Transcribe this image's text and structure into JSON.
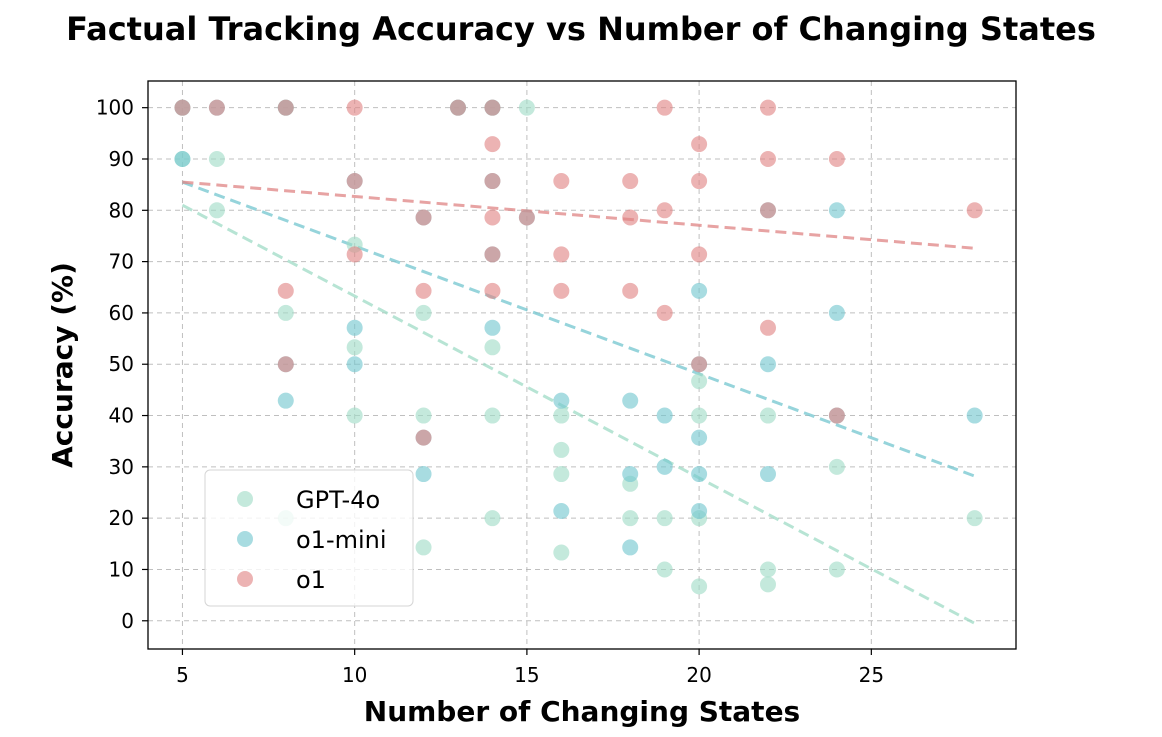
{
  "chart_data": {
    "type": "scatter",
    "title": "Factual Tracking Accuracy vs Number of Changing States",
    "xlabel": "Number of Changing States",
    "ylabel": "Accuracy (%)",
    "xlim": [
      4,
      29.2
    ],
    "ylim": [
      -5.5,
      105.2
    ],
    "xticks": [
      5,
      10,
      15,
      20,
      25
    ],
    "yticks": [
      0,
      10,
      20,
      30,
      40,
      50,
      60,
      70,
      80,
      90,
      100
    ],
    "grid": true,
    "legend_position": "lower-left",
    "series": [
      {
        "name": "GPT-4o",
        "color": "#9fdcc6",
        "trend": [
          [
            5,
            81
          ],
          [
            28,
            -0.5
          ]
        ],
        "points": [
          [
            5,
            100
          ],
          [
            5,
            90
          ],
          [
            6,
            90
          ],
          [
            6,
            80
          ],
          [
            8,
            100
          ],
          [
            8,
            60
          ],
          [
            8,
            20
          ],
          [
            10,
            73.3
          ],
          [
            10,
            53.3
          ],
          [
            10,
            40
          ],
          [
            12,
            60
          ],
          [
            12,
            40
          ],
          [
            12,
            14.3
          ],
          [
            13,
            100
          ],
          [
            14,
            100
          ],
          [
            14,
            53.3
          ],
          [
            14,
            40
          ],
          [
            14,
            20
          ],
          [
            15,
            100
          ],
          [
            16,
            40
          ],
          [
            16,
            33.3
          ],
          [
            16,
            28.6
          ],
          [
            16,
            13.3
          ],
          [
            18,
            26.7
          ],
          [
            18,
            20
          ],
          [
            19,
            20
          ],
          [
            19,
            10
          ],
          [
            20,
            46.7
          ],
          [
            20,
            40
          ],
          [
            20,
            20
          ],
          [
            20,
            6.7
          ],
          [
            22,
            40
          ],
          [
            22,
            10
          ],
          [
            22,
            7.1
          ],
          [
            24,
            30
          ],
          [
            24,
            10
          ],
          [
            28,
            20
          ]
        ]
      },
      {
        "name": "o1-mini",
        "color": "#73c6cf",
        "trend": [
          [
            5,
            85.5
          ],
          [
            28,
            28.2
          ]
        ],
        "points": [
          [
            5,
            100
          ],
          [
            5,
            90
          ],
          [
            6,
            100
          ],
          [
            8,
            100
          ],
          [
            8,
            50
          ],
          [
            8,
            42.9
          ],
          [
            10,
            85.7
          ],
          [
            10,
            57.1
          ],
          [
            10,
            50
          ],
          [
            12,
            78.6
          ],
          [
            12,
            28.6
          ],
          [
            12,
            35.7
          ],
          [
            13,
            100
          ],
          [
            14,
            100
          ],
          [
            14,
            85.7
          ],
          [
            14,
            71.4
          ],
          [
            14,
            57.1
          ],
          [
            15,
            78.6
          ],
          [
            16,
            42.9
          ],
          [
            16,
            21.4
          ],
          [
            18,
            42.9
          ],
          [
            18,
            28.6
          ],
          [
            18,
            14.3
          ],
          [
            19,
            40
          ],
          [
            19,
            30
          ],
          [
            20,
            64.3
          ],
          [
            20,
            50
          ],
          [
            20,
            35.7
          ],
          [
            20,
            28.6
          ],
          [
            20,
            21.4
          ],
          [
            22,
            80
          ],
          [
            22,
            50
          ],
          [
            22,
            28.6
          ],
          [
            24,
            80
          ],
          [
            24,
            60
          ],
          [
            24,
            40
          ],
          [
            28,
            40
          ]
        ]
      },
      {
        "name": "o1",
        "color": "#e08585",
        "trend": [
          [
            5,
            85.5
          ],
          [
            28,
            72.6
          ]
        ],
        "points": [
          [
            5,
            100
          ],
          [
            6,
            100
          ],
          [
            8,
            100
          ],
          [
            8,
            64.3
          ],
          [
            8,
            50
          ],
          [
            10,
            100
          ],
          [
            10,
            85.7
          ],
          [
            10,
            71.4
          ],
          [
            12,
            78.6
          ],
          [
            12,
            64.3
          ],
          [
            12,
            35.7
          ],
          [
            13,
            100
          ],
          [
            14,
            100
          ],
          [
            14,
            92.9
          ],
          [
            14,
            85.7
          ],
          [
            14,
            78.6
          ],
          [
            14,
            71.4
          ],
          [
            14,
            64.3
          ],
          [
            15,
            78.6
          ],
          [
            16,
            85.7
          ],
          [
            16,
            71.4
          ],
          [
            16,
            64.3
          ],
          [
            18,
            85.7
          ],
          [
            18,
            78.6
          ],
          [
            18,
            64.3
          ],
          [
            19,
            100
          ],
          [
            19,
            80
          ],
          [
            19,
            60
          ],
          [
            20,
            92.9
          ],
          [
            20,
            85.7
          ],
          [
            20,
            71.4
          ],
          [
            20,
            50
          ],
          [
            22,
            100
          ],
          [
            22,
            90
          ],
          [
            22,
            80
          ],
          [
            22,
            57.1
          ],
          [
            24,
            90
          ],
          [
            24,
            40
          ],
          [
            28,
            80
          ]
        ]
      }
    ]
  }
}
